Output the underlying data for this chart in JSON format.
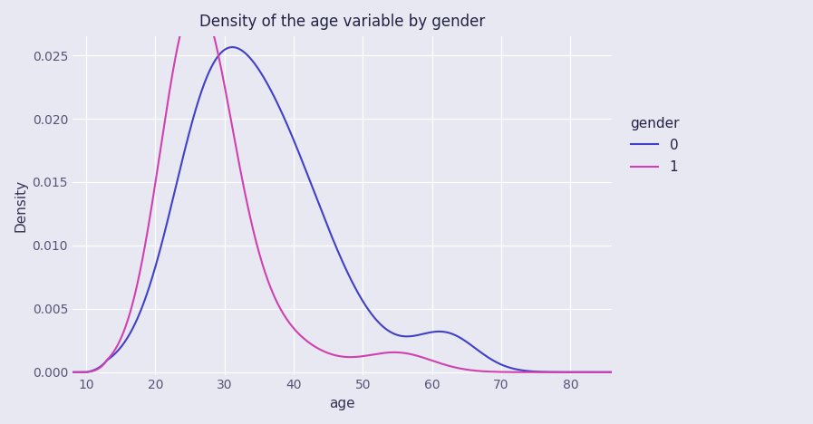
{
  "title": "Density of the age variable by gender",
  "xlabel": "age",
  "ylabel": "Density",
  "legend_title": "gender",
  "line_0_color": "#4040c8",
  "line_1_color": "#d040b0",
  "background_color": "#e8e8f2",
  "xlim": [
    8,
    86
  ],
  "ylim": [
    -0.0002,
    0.0265
  ],
  "yticks": [
    0.0,
    0.005,
    0.01,
    0.015,
    0.02,
    0.025
  ],
  "xticks": [
    10,
    20,
    30,
    40,
    50,
    60,
    70,
    80
  ],
  "figsize": [
    8.97,
    4.68
  ],
  "dpi": 100
}
